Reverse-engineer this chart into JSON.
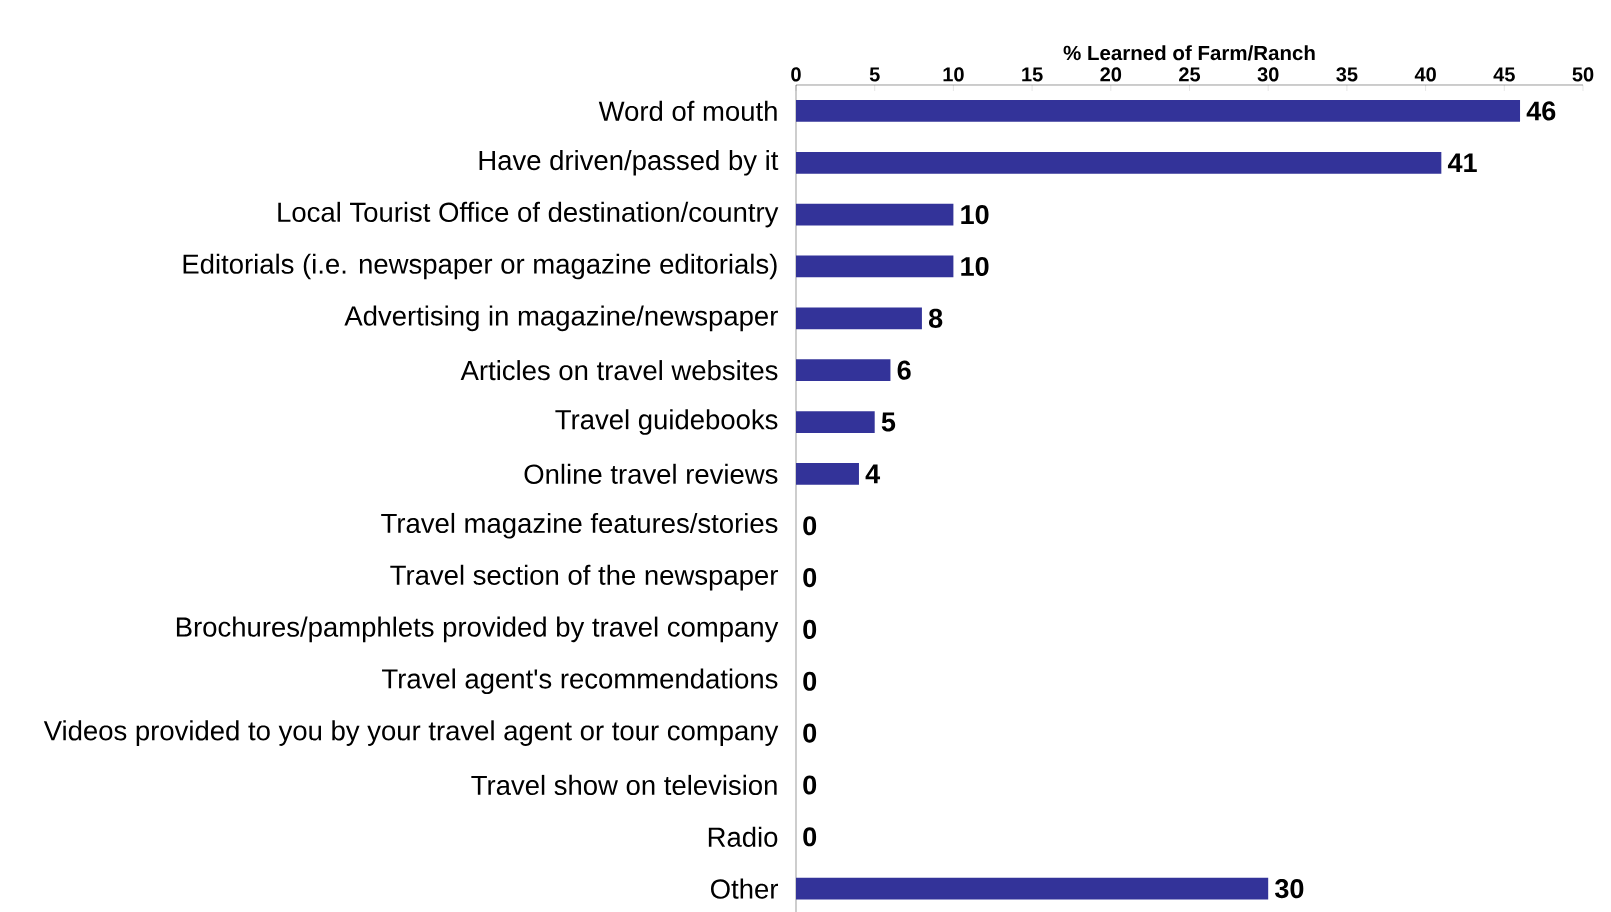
{
  "chart_data": {
    "type": "bar",
    "orientation": "horizontal",
    "xlabel": "% Learned of Farm/Ranch",
    "categories": [
      "Word of mouth",
      "Have driven/passed by it",
      "Local Tourist Office of destination/country",
      "Editorials (i.e. newspaper or magazine editorials)",
      "Advertising in magazine/newspaper",
      "Articles on travel websites",
      "Travel guidebooks",
      "Online travel reviews",
      "Travel magazine features/stories",
      "Travel section of the newspaper",
      "Brochures/pamphlets provided by travel company",
      "Travel agent's recommendations",
      "Videos provided to you by your travel agent or tour company",
      "Travel show on television",
      "Radio",
      "Other"
    ],
    "values": [
      46,
      41,
      10,
      10,
      8,
      6,
      5,
      4,
      0,
      0,
      0,
      0,
      0,
      0,
      0,
      30
    ],
    "color": "#333399",
    "xlim": [
      0,
      50
    ],
    "xticks": [
      0,
      5,
      10,
      15,
      20,
      25,
      30,
      35,
      40,
      45,
      50
    ],
    "data_labels": true
  }
}
